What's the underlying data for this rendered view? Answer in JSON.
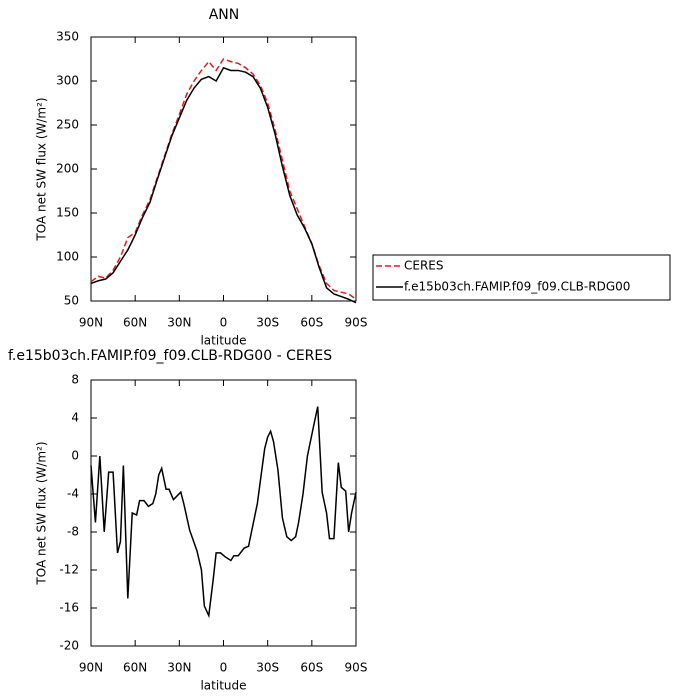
{
  "chart_data": [
    {
      "type": "line",
      "title": "ANN",
      "xlabel": "latitude",
      "ylabel": "TOA net SW flux (W/m²)",
      "x": [
        90,
        85,
        80,
        75,
        70,
        65,
        60,
        55,
        50,
        45,
        40,
        35,
        30,
        25,
        20,
        15,
        10,
        5,
        0,
        -5,
        -10,
        -15,
        -20,
        -25,
        -30,
        -35,
        -40,
        -45,
        -50,
        -55,
        -60,
        -65,
        -70,
        -75,
        -80,
        -85,
        -90
      ],
      "series": [
        {
          "name": "CERES",
          "color": "#e41a1c",
          "linestyle": "dashed",
          "values": [
            72,
            78,
            76,
            85,
            100,
            122,
            128,
            148,
            165,
            190,
            215,
            240,
            262,
            285,
            300,
            312,
            322,
            312,
            325,
            322,
            320,
            315,
            308,
            295,
            275,
            245,
            210,
            175,
            155,
            135,
            115,
            90,
            70,
            62,
            60,
            58,
            52
          ]
        },
        {
          "name": "f.e15b03ch.FAMIP.f09_f09.CLB-RDG00",
          "color": "#000000",
          "linestyle": "solid",
          "values": [
            70,
            73,
            75,
            82,
            95,
            108,
            125,
            145,
            162,
            188,
            213,
            238,
            258,
            278,
            292,
            302,
            305,
            300,
            315,
            312,
            312,
            310,
            305,
            292,
            270,
            240,
            203,
            170,
            148,
            133,
            115,
            88,
            65,
            58,
            55,
            52,
            48
          ]
        }
      ],
      "xlim": [
        90,
        -90
      ],
      "xticks": [
        {
          "value": 90,
          "label": "90N"
        },
        {
          "value": 60,
          "label": "60N"
        },
        {
          "value": 30,
          "label": "30N"
        },
        0,
        {
          "value": -30,
          "label": "30S"
        },
        {
          "value": -60,
          "label": "60S"
        },
        {
          "value": -90,
          "label": "90S"
        }
      ],
      "ylim": [
        50,
        350
      ],
      "yticks": [
        50,
        100,
        150,
        200,
        250,
        300,
        350
      ],
      "legend": "right"
    },
    {
      "type": "line",
      "title": "f.e15b03ch.FAMIP.f09_f09.CLB-RDG00 - CERES",
      "xlabel": "latitude",
      "ylabel": "TOA net SW flux (W/m²)",
      "x": [
        90,
        87,
        84,
        81,
        78,
        75,
        72,
        70,
        68,
        65,
        62,
        59,
        57,
        54,
        51,
        48,
        46,
        44,
        42,
        39,
        37,
        34,
        29,
        27,
        23,
        18,
        15,
        13,
        10,
        7,
        5,
        2,
        -1,
        -5,
        -7,
        -10,
        -14,
        -17,
        -19,
        -23,
        -26,
        -28,
        -30,
        -32,
        -34,
        -37,
        -40,
        -43,
        -46,
        -49,
        -51,
        -54,
        -57,
        -61,
        -64,
        -67,
        -70,
        -72,
        -75,
        -78,
        -80,
        -83,
        -85,
        -87,
        -90
      ],
      "series": [
        {
          "color": "#000000",
          "linestyle": "solid",
          "values": [
            -1,
            -7,
            0,
            -8,
            -1.7,
            -1.7,
            -10.2,
            -9,
            -1,
            -15,
            -6,
            -6.2,
            -4.7,
            -4.7,
            -5.3,
            -5,
            -4,
            -2,
            -1.3,
            -3.5,
            -3.5,
            -4.6,
            -3.8,
            -5,
            -7.8,
            -10,
            -12,
            -15.8,
            -16.8,
            -13,
            -10.2,
            -10.2,
            -10.6,
            -11,
            -10.5,
            -10.5,
            -9.7,
            -9.5,
            -8,
            -5,
            -1.5,
            0.8,
            2,
            2.6,
            1.5,
            -1.5,
            -6.5,
            -8.5,
            -8.9,
            -8.5,
            -7,
            -4,
            0,
            3,
            5.2,
            -3.8,
            -6,
            -8.7,
            -8.7,
            -0.7,
            -3.3,
            -3.7,
            -8,
            -6,
            -3.8
          ]
        }
      ],
      "xlim": [
        90,
        -90
      ],
      "xticks": [
        {
          "value": 90,
          "label": "90N"
        },
        {
          "value": 60,
          "label": "60N"
        },
        {
          "value": 30,
          "label": "30N"
        },
        0,
        {
          "value": -30,
          "label": "30S"
        },
        {
          "value": -60,
          "label": "60S"
        },
        {
          "value": -90,
          "label": "90S"
        }
      ],
      "ylim": [
        -20,
        8
      ],
      "yticks": [
        -20,
        -16,
        -12,
        -8,
        -4,
        0,
        4,
        8
      ]
    }
  ]
}
